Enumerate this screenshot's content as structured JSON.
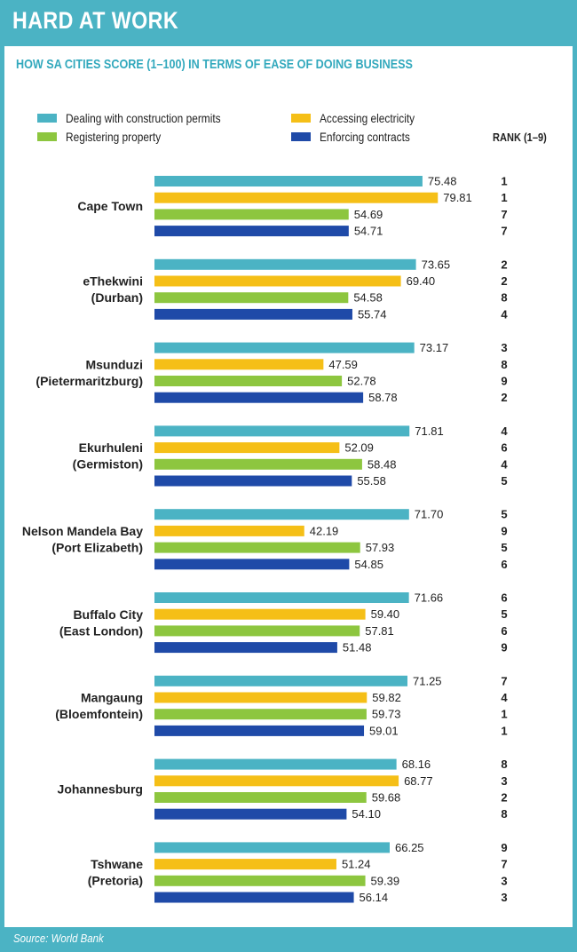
{
  "title": "HARD AT WORK",
  "subtitle": "HOW SA CITIES SCORE (1–100) IN TERMS OF EASE OF DOING BUSINESS",
  "rank_header": "RANK (1–9)",
  "source": "Source: World Bank",
  "colors": {
    "frame": "#4bb3c4",
    "construction": "#4bb3c4",
    "electricity": "#f5bf17",
    "property": "#8dc63f",
    "contracts": "#1f4aa8"
  },
  "legend": [
    {
      "label": "Dealing with construction permits",
      "color": "#4bb3c4"
    },
    {
      "label": "Accessing electricity",
      "color": "#f5bf17"
    },
    {
      "label": "Registering property",
      "color": "#8dc63f"
    },
    {
      "label": "Enforcing contracts",
      "color": "#1f4aa8"
    }
  ],
  "chart_data": {
    "type": "bar",
    "orientation": "horizontal",
    "title": "HOW SA CITIES SCORE (1–100) IN TERMS OF EASE OF DOING BUSINESS",
    "xlim": [
      0,
      100
    ],
    "grid": false,
    "legend_position": "top",
    "categories": [
      [
        "Cape Town"
      ],
      [
        "eThekwini",
        "(Durban)"
      ],
      [
        "Msunduzi",
        "(Pietermaritzburg)"
      ],
      [
        "Ekurhuleni",
        "(Germiston)"
      ],
      [
        "Nelson Mandela Bay",
        "(Port  Elizabeth)"
      ],
      [
        "Buffalo City",
        "(East London)"
      ],
      [
        "Mangaung",
        "(Bloemfontein)"
      ],
      [
        "Johannesburg"
      ],
      [
        "Tshwane",
        "(Pretoria)"
      ]
    ],
    "series": [
      {
        "name": "Dealing with construction permits",
        "values": [
          75.48,
          73.65,
          73.17,
          71.81,
          71.7,
          71.66,
          71.25,
          68.16,
          66.25
        ],
        "ranks": [
          1,
          2,
          3,
          4,
          5,
          6,
          7,
          8,
          9
        ]
      },
      {
        "name": "Accessing electricity",
        "values": [
          79.81,
          69.4,
          47.59,
          52.09,
          42.19,
          59.4,
          59.82,
          68.77,
          51.24
        ],
        "ranks": [
          1,
          2,
          8,
          6,
          9,
          5,
          4,
          3,
          7
        ]
      },
      {
        "name": "Registering property",
        "values": [
          54.69,
          54.58,
          52.78,
          58.48,
          57.93,
          57.81,
          59.73,
          59.68,
          59.39
        ],
        "ranks": [
          7,
          8,
          9,
          4,
          5,
          6,
          1,
          2,
          3
        ]
      },
      {
        "name": "Enforcing contracts",
        "values": [
          54.71,
          55.74,
          58.78,
          55.58,
          54.85,
          51.48,
          59.01,
          54.1,
          56.14
        ],
        "ranks": [
          7,
          4,
          2,
          5,
          6,
          9,
          1,
          8,
          3
        ]
      }
    ]
  }
}
